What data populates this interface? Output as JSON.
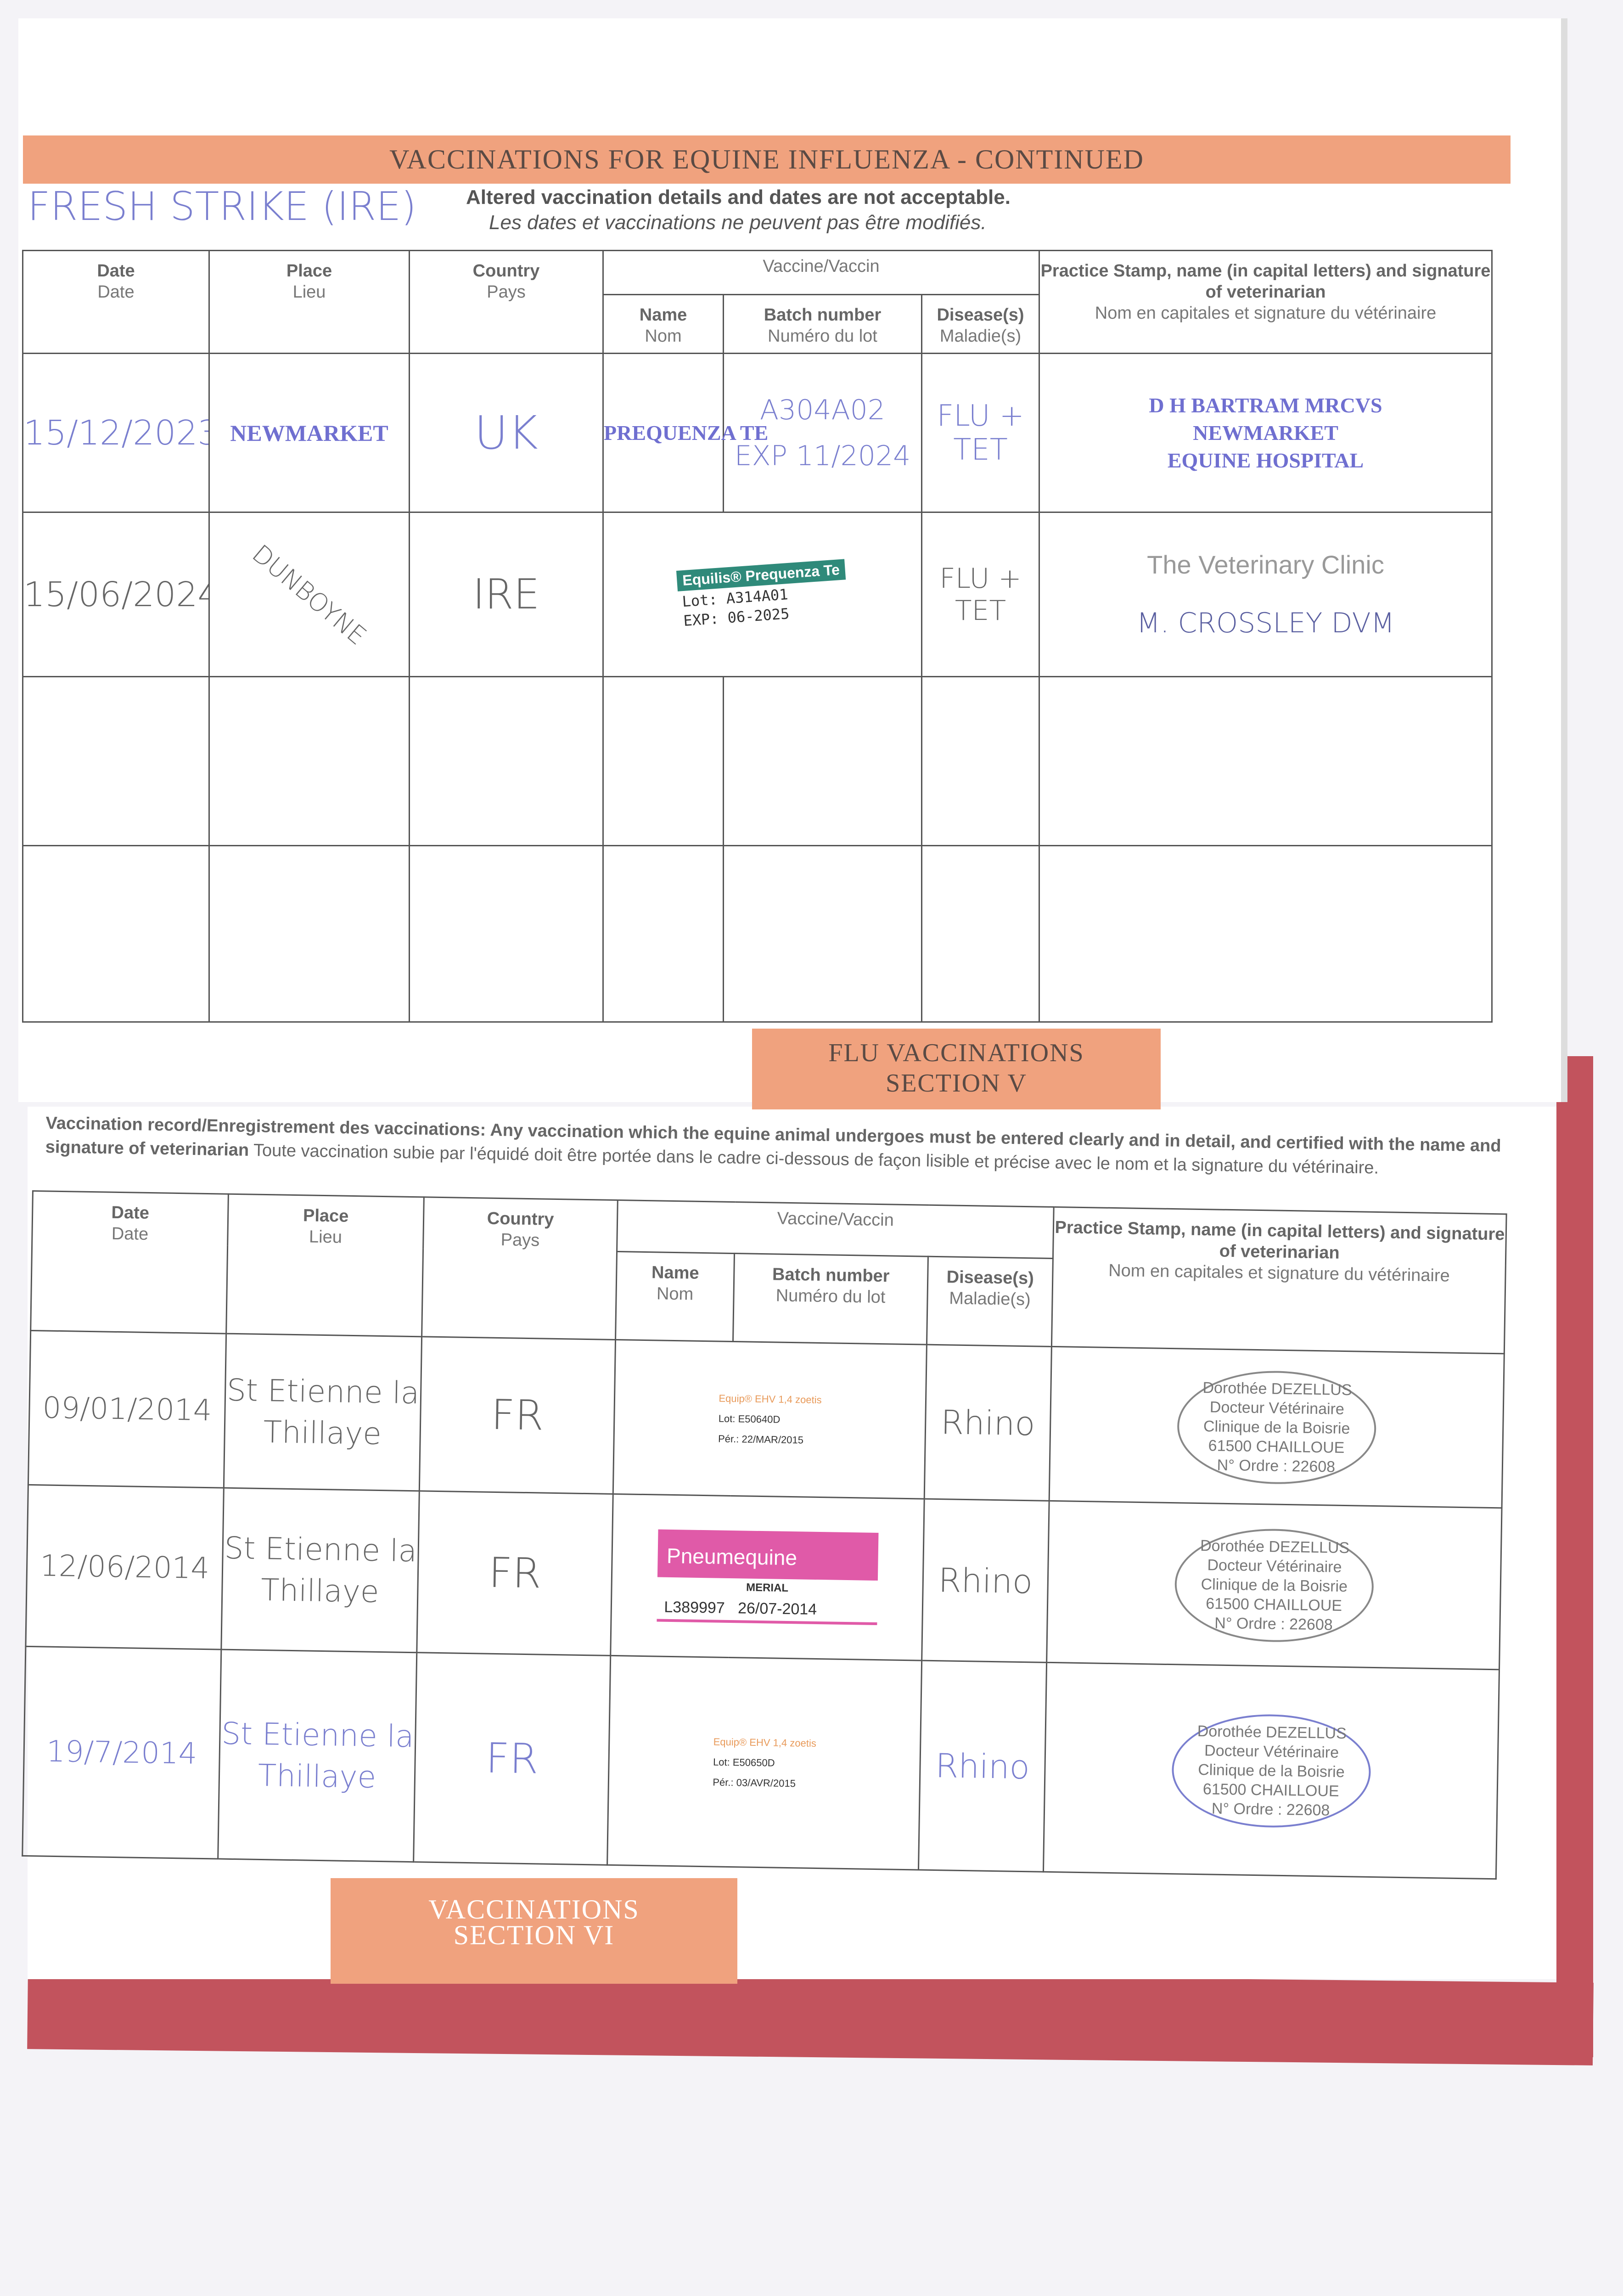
{
  "page1": {
    "banner": "VACCINATIONS FOR EQUINE INFLUENZA - CONTINUED",
    "horse_name": "FRESH STRIKE (IRE)",
    "notice_en": "Altered vaccination details and dates are not acceptable.",
    "notice_fr": "Les dates et vaccinations ne peuvent pas être modifiés.",
    "headers": {
      "date_en": "Date",
      "date_fr": "Date",
      "place_en": "Place",
      "place_fr": "Lieu",
      "country_en": "Country",
      "country_fr": "Pays",
      "vaccine": "Vaccine/Vaccin",
      "name_en": "Name",
      "name_fr": "Nom",
      "batch_en": "Batch number",
      "batch_fr": "Numéro du lot",
      "disease_en": "Disease(s)",
      "disease_fr": "Maladie(s)",
      "stamp_en": "Practice Stamp, name (in capital letters) and signature of veterinarian",
      "stamp_fr": "Nom en capitales et signature du vétérinaire"
    },
    "rows": [
      {
        "date": "15/12/2023",
        "place": "NEWMARKET",
        "country": "UK",
        "name": "PREQUENZA TE",
        "batch": "A304A02",
        "exp": "EXP 11/2024",
        "disease": "FLU + TET",
        "stamp": [
          "D H BARTRAM MRCVS",
          "NEWMARKET",
          "EQUINE HOSPITAL"
        ]
      },
      {
        "date": "15/06/2024",
        "place": "DUNBOYNE",
        "country": "IRE",
        "label_brand": "Equilis® Prequenza Te",
        "label_lot": "Lot: A314A01",
        "label_exp": "EXP: 06-2025",
        "disease": "FLU + TET",
        "stamp_clinic": "The Veterinary Clinic",
        "vet_name": "M. CROSSLEY DVM"
      }
    ]
  },
  "section_v": {
    "line1": "FLU VACCINATIONS",
    "line2": "SECTION V"
  },
  "page2": {
    "instruction_en": "Vaccination record/Enregistrement des vaccinations: Any vaccination which the equine animal undergoes must be entered clearly and in detail, and certified with the name and signature of veterinarian",
    "instruction_fr": "Toute vaccination subie par l'équidé doit être portée dans le cadre ci-dessous de façon lisible et précise avec le nom et la signature du vétérinaire.",
    "rows": [
      {
        "date": "09/01/2014",
        "place": "St Etienne la Thillaye",
        "country": "FR",
        "label_brand": "Equip® EHV 1,4  zoetis",
        "label_lot": "Lot: E50640D",
        "label_exp": "Pér.: 22/MAR/2015",
        "disease": "Rhino",
        "stamp": [
          "Dorothée DEZELLUS",
          "Docteur Vétérinaire",
          "Clinique de la Boisrie",
          "61500 CHAILLOUE",
          "N° Ordre : 22608"
        ]
      },
      {
        "date": "12/06/2014",
        "place": "St Etienne la Thillaye",
        "country": "FR",
        "label_brand": "Pneumequine",
        "label_maker": "MERIAL",
        "label_lot": "L389997",
        "label_exp": "26/07-2014",
        "disease": "Rhino",
        "stamp": [
          "Dorothée DEZELLUS",
          "Docteur Vétérinaire",
          "Clinique de la Boisrie",
          "61500 CHAILLOUE",
          "N° Ordre : 22608"
        ]
      },
      {
        "date": "19/7/2014",
        "place": "St Etienne la Thillaye",
        "country": "FR",
        "label_brand": "Equip® EHV 1,4  zoetis",
        "label_lot": "Lot: E50650D",
        "label_exp": "Pér.: 03/AVR/2015",
        "disease": "Rhino",
        "stamp": [
          "Dorothée DEZELLUS",
          "Docteur Vétérinaire",
          "Clinique de la Boisrie",
          "61500 CHAILLOUE",
          "N° Ordre : 22608"
        ]
      }
    ]
  },
  "section_vi": {
    "line1": "VACCINATIONS",
    "line2": "SECTION VI"
  },
  "colors": {
    "banner": "#f0a27e",
    "ink_blue": "#7a7fcf",
    "book_red": "#c2535d",
    "label_pink": "#e05aa8",
    "label_teal": "#2f8a7a"
  }
}
